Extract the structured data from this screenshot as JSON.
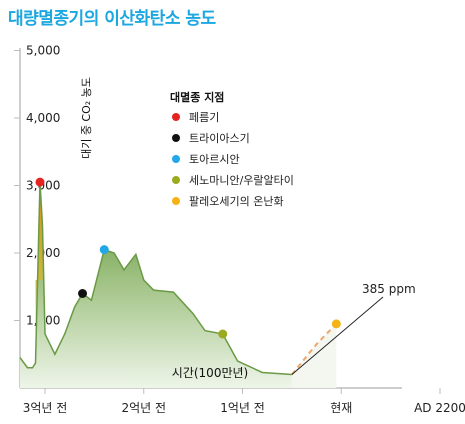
{
  "title": "대량멸종기의 이산화탄소 농도",
  "chart_data": {
    "type": "area",
    "title": "대량멸종기의 이산화탄소 농도",
    "ylabel": "대기 중 CO₂ 농도",
    "xlabel": "시간(100만년)",
    "ylim": [
      0,
      5000
    ],
    "yticks": [
      {
        "value": 1000,
        "label": "1,000"
      },
      {
        "value": 2000,
        "label": "2,000"
      },
      {
        "value": 3000,
        "label": "3,000"
      },
      {
        "value": 4000,
        "label": "4,000"
      },
      {
        "value": 5000,
        "label": "5,000"
      }
    ],
    "xticks": [
      {
        "index": 1,
        "label": "3억년 전"
      },
      {
        "index": 2,
        "label": "2억년 전"
      },
      {
        "index": 3,
        "label": "1억년 전"
      },
      {
        "index": 4,
        "label": "현재"
      },
      {
        "index": 5,
        "label": "AD 2200"
      }
    ],
    "series": [
      {
        "points": [
          [
            0.0,
            450
          ],
          [
            0.3,
            300
          ],
          [
            0.5,
            300
          ],
          [
            0.62,
            370
          ],
          [
            0.8,
            3050
          ],
          [
            0.9,
            2400
          ],
          [
            1.0,
            800
          ],
          [
            1.1,
            500
          ],
          [
            1.2,
            800
          ],
          [
            1.3,
            1200
          ],
          [
            1.38,
            1400
          ],
          [
            1.47,
            1300
          ],
          [
            1.6,
            2050
          ],
          [
            1.7,
            2000
          ],
          [
            1.8,
            1750
          ],
          [
            1.92,
            1980
          ],
          [
            2.0,
            1600
          ],
          [
            2.1,
            1450
          ],
          [
            2.3,
            1420
          ],
          [
            2.5,
            1100
          ],
          [
            2.62,
            850
          ],
          [
            2.8,
            800
          ],
          [
            2.95,
            400
          ],
          [
            3.2,
            230
          ],
          [
            3.5,
            200
          ]
        ]
      },
      {
        "style": "dashed",
        "points": [
          [
            3.5,
            200
          ],
          [
            3.75,
            650
          ],
          [
            3.95,
            950
          ]
        ]
      }
    ],
    "legend_title": "대멸종 지점",
    "events": [
      {
        "label": "페름기",
        "color": "#e52421",
        "x": 0.8,
        "y": 3050
      },
      {
        "label": "트라이아스기",
        "color": "#111111",
        "x": 1.38,
        "y": 1400
      },
      {
        "label": "토아르시안",
        "color": "#22a7e8",
        "x": 1.6,
        "y": 2050
      },
      {
        "label": "세노마니안/우랄알타이",
        "color": "#9aab1f",
        "x": 2.8,
        "y": 800
      },
      {
        "label": "팔레오세기의 온난화",
        "color": "#f5b315",
        "x": 3.95,
        "y": 950
      }
    ],
    "annotations": [
      {
        "text": "385 ppm",
        "x": 3.5,
        "y": 200
      }
    ],
    "grid": false
  }
}
